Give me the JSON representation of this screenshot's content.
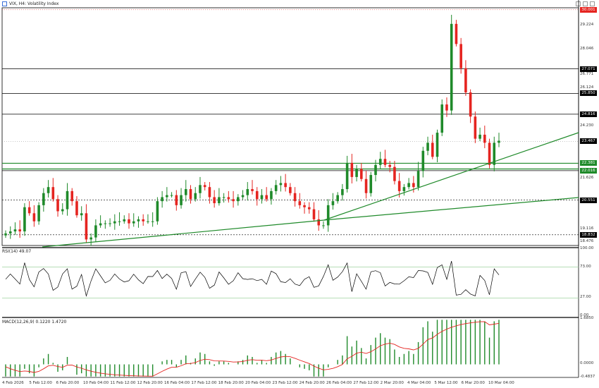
{
  "chart_title": "VIX, H4: Volatility Index",
  "window_buttons": {
    "restore": "restore-icon",
    "maximize": "maximize-icon",
    "close": "close-icon"
  },
  "rsi_label": "RSI(14) 49.07",
  "macd_label": "MACD(12,26,9) 0.1220 1.4720",
  "colors": {
    "bull": "#1f8a2a",
    "bear": "#e52420",
    "line": "#000000",
    "tag_red": "#e52420",
    "tag_green": "#1f8a2a",
    "tag_black": "#000000",
    "macd_signal": "#e52420"
  },
  "price_axis": [
    "30.001",
    "29.224",
    "28.046",
    "27.071",
    "26.771",
    "26.124",
    "25.850",
    "24.816",
    "24.230",
    "23.467",
    "22.381",
    "22.016",
    "21.626",
    "20.551",
    "19.116",
    "18.832",
    "18.476"
  ],
  "price_tags": [
    {
      "text": "30.001",
      "color": "red"
    },
    {
      "text": "27.071",
      "color": "black"
    },
    {
      "text": "25.850",
      "color": "black"
    },
    {
      "text": "24.816",
      "color": "black"
    },
    {
      "text": "23.467",
      "color": "black"
    },
    {
      "text": "22.381",
      "color": "green"
    },
    {
      "text": "22.016",
      "color": "green"
    },
    {
      "text": "20.551",
      "color": "black"
    },
    {
      "text": "18.832",
      "color": "black"
    }
  ],
  "rsi_axis": [
    "100.00",
    "73.00",
    "27.00",
    "0.00"
  ],
  "macd_axis": [
    "1.6850",
    "0.0000",
    "-0.4837"
  ],
  "x_axis": [
    "4 Feb 2026",
    "5 Feb 12:00",
    "6 Feb 20:00",
    "10 Feb 04:00",
    "11 Feb 12:00",
    "12 Feb 20:00",
    "16 Feb 04:00",
    "17 Feb 12:00",
    "18 Feb 20:00",
    "20 Feb 04:00",
    "23 Feb 12:00",
    "24 Feb 20:00",
    "26 Feb 04:00",
    "27 Feb 12:00",
    "2 Mar 20:00",
    "4 Mar 04:00",
    "5 Mar 12:00",
    "6 Mar 20:00",
    "10 Mar 04:00"
  ],
  "chart_data": {
    "type": "candlestick",
    "title": "VIX, H4: Volatility Index",
    "ylim": [
      18.3,
      30.1
    ],
    "x": [
      "4 Feb 2026",
      "5 Feb 12:00",
      "6 Feb 20:00",
      "10 Feb 04:00",
      "11 Feb 12:00",
      "12 Feb 20:00",
      "16 Feb 04:00",
      "17 Feb 12:00",
      "18 Feb 20:00",
      "20 Feb 04:00",
      "23 Feb 12:00",
      "24 Feb 20:00",
      "26 Feb 04:00",
      "27 Feb 12:00",
      "2 Mar 20:00",
      "4 Mar 04:00",
      "5 Mar 12:00",
      "6 Mar 20:00",
      "10 Mar 04:00"
    ],
    "close_path": [
      18.9,
      19.0,
      19.1,
      19.0,
      20.2,
      19.9,
      19.5,
      20.3,
      20.9,
      21.2,
      20.6,
      20.0,
      20.1,
      21.0,
      20.5,
      19.8,
      19.9,
      18.6,
      18.7,
      19.3,
      19.4,
      19.4,
      19.4,
      19.5,
      19.5,
      19.6,
      19.4,
      19.5,
      19.6,
      19.5,
      19.5,
      19.5,
      20.5,
      20.7,
      20.8,
      20.8,
      20.3,
      20.8,
      21.1,
      20.6,
      20.9,
      21.3,
      21.2,
      20.7,
      20.4,
      20.7,
      20.7,
      20.6,
      20.5,
      20.7,
      20.8,
      21.1,
      21.0,
      20.6,
      20.8,
      20.6,
      21.0,
      21.3,
      21.4,
      21.2,
      20.9,
      20.5,
      20.3,
      20.2,
      20.1,
      19.6,
      19.3,
      19.3,
      20.3,
      20.5,
      20.8,
      21.1,
      22.4,
      21.7,
      22.1,
      21.6,
      20.9,
      21.8,
      22.3,
      22.6,
      22.3,
      22.2,
      21.5,
      21.0,
      21.2,
      21.4,
      21.2,
      22.0,
      23.0,
      23.4,
      22.7,
      23.9,
      25.3,
      25.0,
      29.3,
      28.3,
      27.1,
      25.9,
      24.7,
      23.6,
      23.8,
      23.4,
      22.3,
      23.4,
      23.5
    ]
  }
}
